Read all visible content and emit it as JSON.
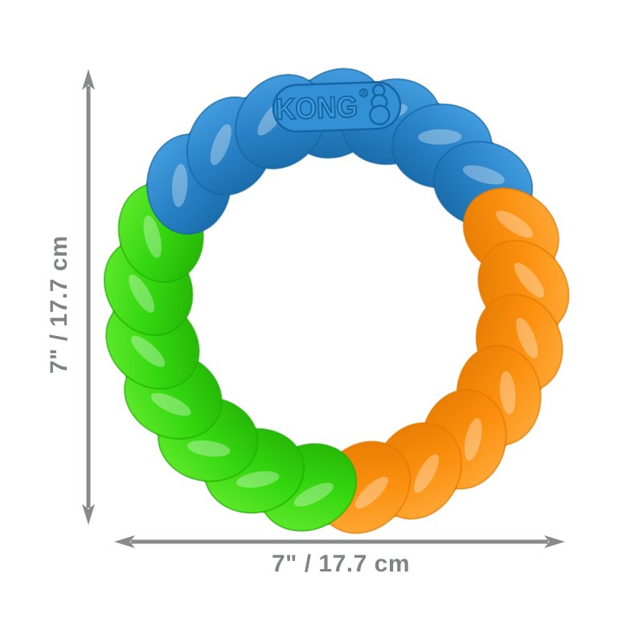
{
  "brand": {
    "name": "KONG",
    "registered_mark": "®"
  },
  "dimensions": {
    "vertical_label": "7\" / 17.7 cm",
    "horizontal_label": "7\" / 17.7 cm"
  },
  "icons": {
    "kong_toy_silhouette": "kong-classic-toy-icon",
    "arrows": [
      "arrow-up-icon",
      "arrow-down-icon",
      "arrow-left-icon",
      "arrow-right-icon"
    ]
  },
  "colors": {
    "background": "#ffffff",
    "rope_blue": "#2a83c8",
    "rope_blue_dark": "#14649f",
    "rope_blue_light": "#4da6e4",
    "rope_green": "#35d810",
    "rope_green_dark": "#21ab04",
    "rope_green_light": "#6cee32",
    "rope_orange": "#fb8f0e",
    "rope_orange_dark": "#e07800",
    "rope_orange_light": "#ffb043",
    "dimension_gray": "#898a8d",
    "label_gray": "#808285",
    "logo_pill": "#3390d4",
    "logo_letter_fill": "#3f9ada",
    "logo_outline": "#1565a3"
  }
}
